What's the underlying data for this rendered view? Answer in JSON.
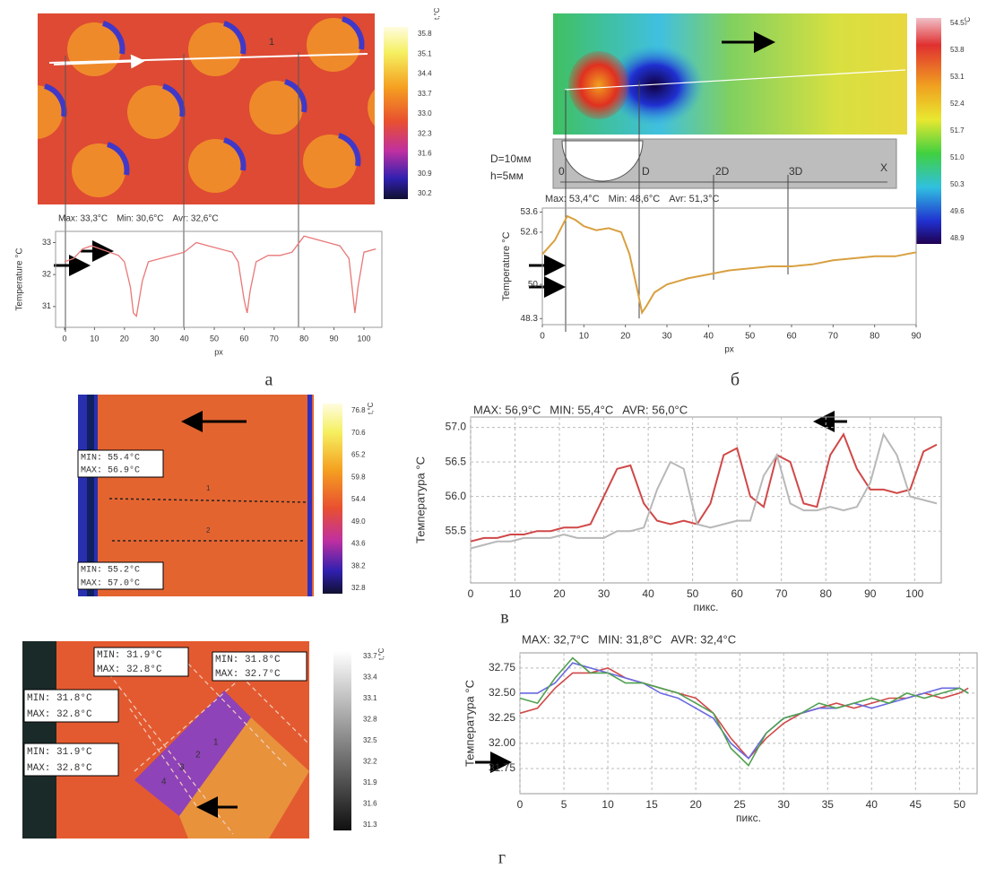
{
  "chart_data": [
    {
      "type": "line",
      "ylabel": "Temperature °C",
      "xlabel": "px",
      "stats": [
        {
          "text": "Max: 33,3°C",
          "color": "#e05050"
        },
        {
          "text": "Min: 30,6°C",
          "color": "#5a5ae0"
        },
        {
          "text": "Avr: 32,6°C",
          "color": "#40a040"
        }
      ],
      "x": [
        0,
        3,
        6,
        9,
        12,
        15,
        18,
        20,
        22,
        23,
        24,
        26,
        28,
        32,
        36,
        40,
        44,
        48,
        52,
        56,
        58,
        60,
        61,
        62,
        64,
        68,
        72,
        76,
        80,
        84,
        88,
        92,
        95,
        97,
        98,
        100,
        104
      ],
      "series": [
        {
          "color": "#e87878",
          "values": [
            32.4,
            32.5,
            32.8,
            32.9,
            32.8,
            32.7,
            32.6,
            32.4,
            31.6,
            30.8,
            30.7,
            31.8,
            32.4,
            32.5,
            32.6,
            32.7,
            33.0,
            32.9,
            32.8,
            32.7,
            32.4,
            31.2,
            30.8,
            31.5,
            32.4,
            32.6,
            32.6,
            32.7,
            33.2,
            33.1,
            33.0,
            32.9,
            32.5,
            30.8,
            31.6,
            32.7,
            32.8
          ]
        }
      ],
      "xlim": [
        -3,
        106
      ],
      "xticks": [
        0,
        10,
        20,
        30,
        40,
        50,
        60,
        70,
        80,
        90,
        100
      ],
      "ylim": [
        30.35,
        33.35
      ],
      "yticks": [
        31,
        32,
        33
      ],
      "grid": false
    },
    {
      "type": "line",
      "ylabel": "Temperature °C",
      "xlabel": "px",
      "stats": [
        {
          "text": "Max: 53,4°C",
          "color": "#e05050"
        },
        {
          "text": "Min: 48,6°C",
          "color": "#5a5ae0"
        },
        {
          "text": "Avr: 51,3°C",
          "color": "#40a040"
        }
      ],
      "x": [
        0,
        3,
        6,
        8,
        10,
        13,
        16,
        19,
        21,
        23,
        24,
        25,
        27,
        30,
        35,
        40,
        45,
        50,
        55,
        60,
        65,
        70,
        75,
        80,
        85,
        90
      ],
      "series": [
        {
          "color": "#d8a040",
          "values": [
            51.5,
            52.2,
            53.4,
            53.2,
            52.9,
            52.7,
            52.8,
            52.6,
            51.5,
            49.6,
            48.6,
            48.9,
            49.6,
            50.0,
            50.3,
            50.5,
            50.7,
            50.8,
            50.9,
            50.9,
            51.0,
            51.2,
            51.3,
            51.4,
            51.4,
            51.6
          ]
        }
      ],
      "xlim": [
        0,
        90
      ],
      "xticks": [
        0,
        10,
        20,
        30,
        40,
        50,
        60,
        70,
        80,
        90
      ],
      "ylim": [
        48.0,
        53.8
      ],
      "yticks": [
        48.3,
        50.0,
        52.6,
        53.6
      ],
      "grid": false
    },
    {
      "type": "line",
      "ylabel": "Температура °C",
      "xlabel": "пикс.",
      "stats": [
        {
          "text": "MAX: 56,9°C",
          "color": "#d04040"
        },
        {
          "text": "MIN: 55,4°C",
          "color": "#5a5ae0"
        },
        {
          "text": "AVR: 56,0°C",
          "color": "#40a040"
        }
      ],
      "x": [
        0,
        3,
        6,
        9,
        12,
        15,
        18,
        21,
        24,
        27,
        30,
        33,
        36,
        39,
        42,
        45,
        48,
        51,
        54,
        57,
        60,
        63,
        66,
        69,
        72,
        75,
        78,
        81,
        84,
        87,
        90,
        93,
        96,
        99,
        102,
        105
      ],
      "series": [
        {
          "color": "#d04848",
          "values": [
            55.35,
            55.4,
            55.4,
            55.45,
            55.45,
            55.5,
            55.5,
            55.55,
            55.55,
            55.6,
            56.0,
            56.4,
            56.45,
            55.9,
            55.65,
            55.6,
            55.65,
            55.6,
            55.9,
            56.6,
            56.7,
            56.0,
            55.85,
            56.6,
            56.5,
            55.9,
            55.85,
            56.6,
            56.9,
            56.4,
            56.1,
            56.1,
            56.05,
            56.1,
            56.65,
            56.75
          ]
        },
        {
          "color": "#b8b8b8",
          "values": [
            55.25,
            55.3,
            55.35,
            55.35,
            55.4,
            55.4,
            55.4,
            55.45,
            55.4,
            55.4,
            55.4,
            55.5,
            55.5,
            55.55,
            56.1,
            56.5,
            56.4,
            55.6,
            55.55,
            55.6,
            55.65,
            55.65,
            56.3,
            56.6,
            55.9,
            55.8,
            55.8,
            55.85,
            55.8,
            55.85,
            56.2,
            56.9,
            56.6,
            56.0,
            55.95,
            55.9
          ]
        }
      ],
      "xlim": [
        0,
        106
      ],
      "xticks": [
        0,
        10,
        20,
        30,
        40,
        50,
        60,
        70,
        80,
        90,
        100
      ],
      "ylim": [
        54.75,
        57.15
      ],
      "yticks": [
        {
          "value": 55.5,
          "label": "55.5"
        },
        {
          "value": 56,
          "label": "56.0"
        },
        {
          "value": 56.5,
          "label": "56.5"
        },
        {
          "value": 57,
          "label": "57.0"
        }
      ],
      "grid": true
    },
    {
      "type": "line",
      "ylabel": "Температура °C",
      "xlabel": "пикс.",
      "stats": [
        {
          "text": "MAX: 32,7°C",
          "color": "#d04040"
        },
        {
          "text": "MIN: 31,8°C",
          "color": "#5a5ae0"
        },
        {
          "text": "AVR: 32,4°C",
          "color": "#40a040"
        }
      ],
      "x": [
        0,
        2,
        4,
        6,
        8,
        10,
        12,
        14,
        16,
        18,
        20,
        22,
        24,
        26,
        28,
        30,
        32,
        34,
        36,
        38,
        40,
        42,
        44,
        46,
        48,
        50,
        51
      ],
      "series": [
        {
          "color": "#d04848",
          "values": [
            32.3,
            32.35,
            32.55,
            32.7,
            32.7,
            32.75,
            32.65,
            32.6,
            32.55,
            32.5,
            32.45,
            32.3,
            32.05,
            31.85,
            32.05,
            32.2,
            32.3,
            32.35,
            32.4,
            32.35,
            32.4,
            32.45,
            32.45,
            32.5,
            32.45,
            32.5,
            32.55
          ]
        },
        {
          "color": "#6a6ae0",
          "values": [
            32.5,
            32.5,
            32.6,
            32.8,
            32.75,
            32.7,
            32.65,
            32.6,
            32.5,
            32.45,
            32.35,
            32.25,
            32.0,
            31.85,
            32.1,
            32.25,
            32.3,
            32.35,
            32.35,
            32.4,
            32.35,
            32.4,
            32.45,
            32.5,
            32.55,
            32.55,
            32.5
          ]
        },
        {
          "color": "#50a050",
          "values": [
            32.45,
            32.4,
            32.65,
            32.85,
            32.7,
            32.7,
            32.6,
            32.6,
            32.55,
            32.5,
            32.4,
            32.3,
            31.95,
            31.78,
            32.1,
            32.25,
            32.3,
            32.4,
            32.35,
            32.4,
            32.45,
            32.4,
            32.5,
            32.45,
            32.5,
            32.55,
            32.5
          ]
        }
      ],
      "xlim": [
        0,
        52
      ],
      "xticks": [
        0,
        5,
        10,
        15,
        20,
        25,
        30,
        35,
        40,
        45,
        50
      ],
      "ylim": [
        31.5,
        32.9
      ],
      "yticks": [
        31.75,
        {
          "value": 32,
          "label": "32.00"
        },
        32.25,
        {
          "value": 32.5,
          "label": "32.50"
        },
        32.75
      ],
      "grid": true
    }
  ],
  "figure": {
    "panels": [
      {
        "label": "а",
        "colorbar_unit": "t,°C",
        "colorbar_ticks": [
          "35.8",
          "35.1",
          "34.4",
          "33.7",
          "33.0",
          "32.3",
          "31.6",
          "30.9",
          "30.2"
        ],
        "annotations": [
          "1"
        ]
      },
      {
        "label": "б",
        "colorbar_unit": "°C",
        "colorbar_ticks": [
          "54.5",
          "53.8",
          "53.1",
          "52.4",
          "51.7",
          "51.0",
          "50.3",
          "49.6",
          "48.9"
        ],
        "annotations": [
          "D=10мм",
          "h=5мм",
          "0",
          "D",
          "2D",
          "3D",
          "X"
        ]
      },
      {
        "label": "в",
        "colorbar_unit": "t,°C",
        "colorbar_ticks": [
          "76.8",
          "70.6",
          "65.2",
          "59.8",
          "54.4",
          "49.0",
          "43.6",
          "38.2",
          "32.8"
        ],
        "annotations": [
          "MIN: 55.4°C",
          "MAX: 56.9°C",
          "MIN: 55.2°C",
          "MAX: 57.0°C",
          "1",
          "2"
        ]
      },
      {
        "label": "г",
        "colorbar_unit": "t,°C",
        "colorbar_ticks": [
          "33.7",
          "33.4",
          "33.1",
          "32.8",
          "32.5",
          "32.2",
          "31.9",
          "31.6",
          "31.3"
        ],
        "annotations": [
          "MIN: 31.9°C",
          "MAX: 32.8°C",
          "MIN: 31.8°C",
          "MAX: 32.7°C",
          "MIN: 31.8°C",
          "MAX: 32.8°C",
          "MIN: 31.9°C",
          "MAX: 32.8°C",
          "1",
          "2",
          "3",
          "4"
        ]
      }
    ]
  }
}
